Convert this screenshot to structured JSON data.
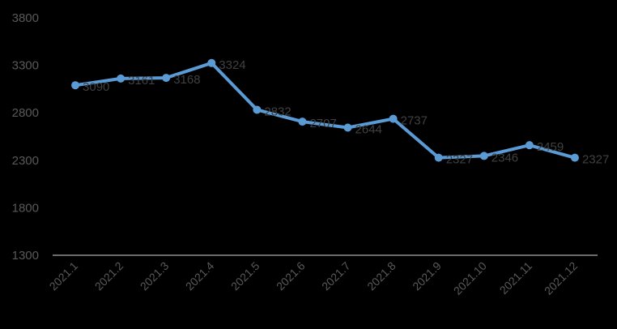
{
  "chart_data": {
    "type": "line",
    "title": "",
    "xlabel": "",
    "ylabel": "",
    "categories": [
      "2021.1",
      "2021.2",
      "2021.3",
      "2021.4",
      "2021.5",
      "2021.6",
      "2021.7",
      "2021.8",
      "2021.9",
      "2021.10",
      "2021.11",
      "2021.12"
    ],
    "series": [
      {
        "values": [
          3090,
          3161,
          3168,
          3324,
          2832,
          2707,
          2644,
          2737,
          2327,
          2346,
          2459,
          2327
        ],
        "labels": [
          "3090",
          "3161",
          "3168",
          "3324",
          "2832",
          "2707",
          "2644",
          "2737",
          "2327",
          "2346",
          "2459",
          "2327"
        ],
        "color": "#5b9bd5"
      }
    ],
    "yticks": [
      "1300",
      "1800",
      "2300",
      "2800",
      "3300",
      "3800"
    ],
    "ylim": [
      1300,
      3800
    ],
    "grid": false,
    "legend": "none",
    "colors": {
      "background": "#000000",
      "axis": "#d9d9d9",
      "tick_text": "#595959",
      "label_text": "#404040"
    }
  }
}
